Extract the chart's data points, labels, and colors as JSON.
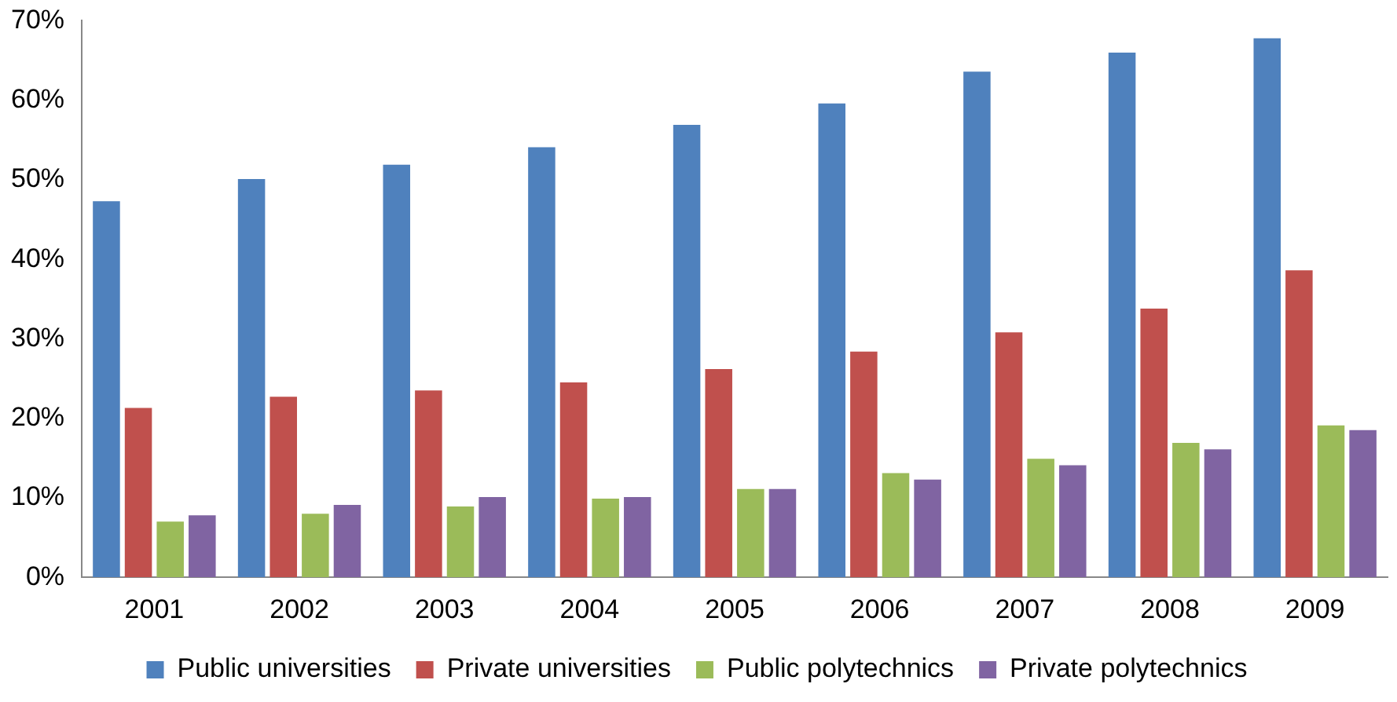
{
  "chart_data": {
    "type": "bar",
    "categories": [
      "2001",
      "2002",
      "2003",
      "2004",
      "2005",
      "2006",
      "2007",
      "2008",
      "2009"
    ],
    "series": [
      {
        "name": "Public universities",
        "color": "#4f81bd",
        "values": [
          47.3,
          50.1,
          51.9,
          54.1,
          56.9,
          59.6,
          63.6,
          66.0,
          67.8
        ]
      },
      {
        "name": "Private universities",
        "color": "#c0504d",
        "values": [
          21.3,
          22.7,
          23.5,
          24.5,
          26.2,
          28.4,
          30.8,
          33.8,
          38.6
        ]
      },
      {
        "name": "Public polytechnics",
        "color": "#9bbb59",
        "values": [
          7.0,
          8.0,
          8.9,
          9.9,
          11.1,
          13.1,
          14.9,
          16.9,
          19.1
        ]
      },
      {
        "name": "Private polytechnics",
        "color": "#8064a2",
        "values": [
          7.8,
          9.1,
          10.1,
          10.1,
          11.1,
          12.3,
          14.1,
          16.1,
          18.5
        ]
      }
    ],
    "ylim": [
      0,
      70
    ],
    "yticks": [
      {
        "value": 0,
        "label": "0%"
      },
      {
        "value": 10,
        "label": "10%"
      },
      {
        "value": 20,
        "label": "20%"
      },
      {
        "value": 30,
        "label": "30%"
      },
      {
        "value": 40,
        "label": "40%"
      },
      {
        "value": 50,
        "label": "50%"
      },
      {
        "value": 60,
        "label": "60%"
      },
      {
        "value": 70,
        "label": "70%"
      }
    ],
    "grid": false,
    "legend": "bottom"
  }
}
